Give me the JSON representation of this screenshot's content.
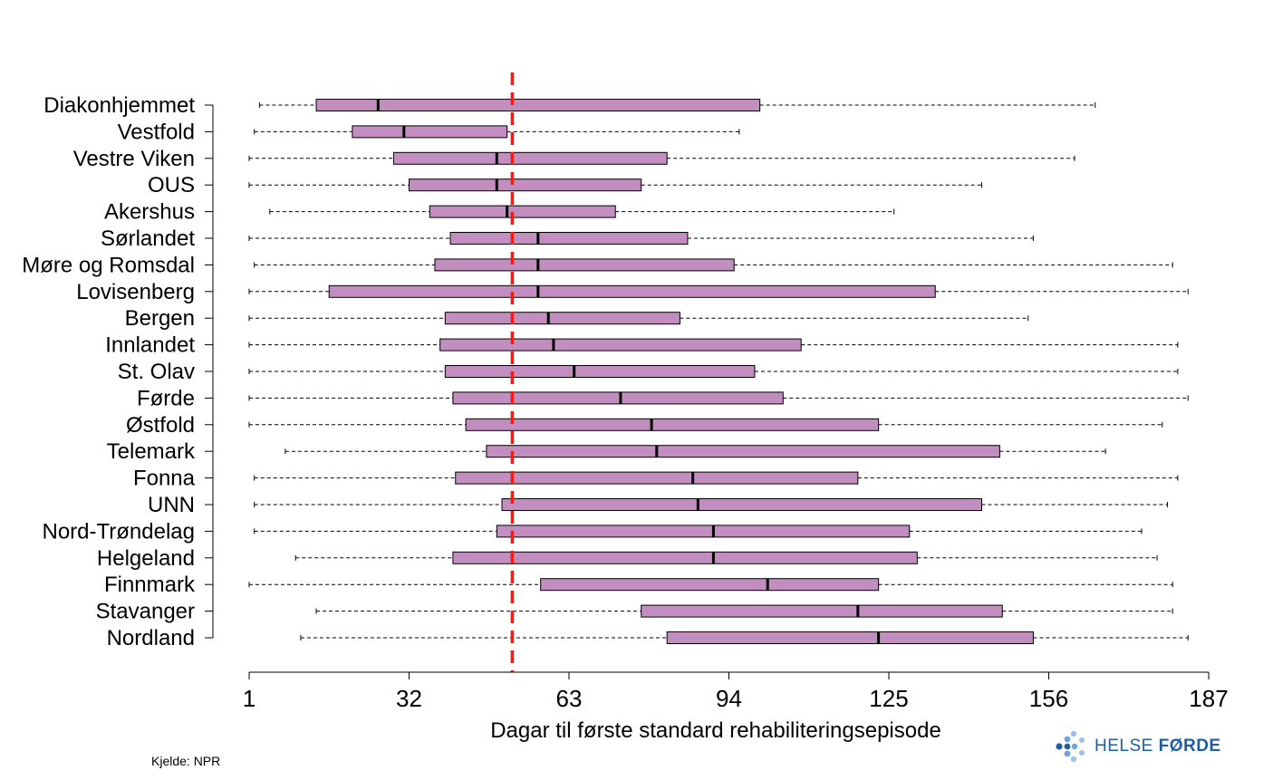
{
  "chart_data": {
    "type": "boxplot",
    "xlabel": "Dagar til første standard rehabiliteringsepisode",
    "xlim": [
      1,
      187
    ],
    "xticks": [
      "1",
      "32",
      "63",
      "94",
      "125",
      "156",
      "187"
    ],
    "reference_line": {
      "x": 52,
      "style": "dashed",
      "color": "#e8201c"
    },
    "box_color": "#c28ec0",
    "categories": [
      "Diakonhjemmet",
      "Vestfold",
      "Vestre Viken",
      "OUS",
      "Akershus",
      "Sørlandet",
      "Møre og Romsdal",
      "Lovisenberg",
      "Bergen",
      "Innlandet",
      "St. Olav",
      "Førde",
      "Østfold",
      "Telemark",
      "Fonna",
      "UNN",
      "Nord-Trøndelag",
      "Helgeland",
      "Finnmark",
      "Stavanger",
      "Nordland"
    ],
    "boxes": [
      {
        "min": 3,
        "q1": 14,
        "median": 26,
        "q3": 100,
        "max": 165
      },
      {
        "min": 2,
        "q1": 21,
        "median": 31,
        "q3": 51,
        "max": 96
      },
      {
        "min": 1,
        "q1": 29,
        "median": 49,
        "q3": 82,
        "max": 161
      },
      {
        "min": 1,
        "q1": 32,
        "median": 49,
        "q3": 77,
        "max": 143
      },
      {
        "min": 5,
        "q1": 36,
        "median": 51,
        "q3": 72,
        "max": 126
      },
      {
        "min": 1,
        "q1": 40,
        "median": 57,
        "q3": 86,
        "max": 153
      },
      {
        "min": 2,
        "q1": 37,
        "median": 57,
        "q3": 95,
        "max": 180
      },
      {
        "min": 1,
        "q1": 16.5,
        "median": 57,
        "q3": 134,
        "max": 183
      },
      {
        "min": 1,
        "q1": 39,
        "median": 59,
        "q3": 84.5,
        "max": 152
      },
      {
        "min": 1,
        "q1": 38,
        "median": 60,
        "q3": 108,
        "max": 181
      },
      {
        "min": 1,
        "q1": 39,
        "median": 64,
        "q3": 99,
        "max": 181
      },
      {
        "min": 1,
        "q1": 40.5,
        "median": 73,
        "q3": 104.5,
        "max": 183
      },
      {
        "min": 1,
        "q1": 43,
        "median": 79,
        "q3": 123,
        "max": 178
      },
      {
        "min": 8,
        "q1": 47,
        "median": 80,
        "q3": 146.5,
        "max": 167
      },
      {
        "min": 2,
        "q1": 41,
        "median": 87,
        "q3": 119,
        "max": 181
      },
      {
        "min": 2,
        "q1": 50,
        "median": 88,
        "q3": 143,
        "max": 179
      },
      {
        "min": 2,
        "q1": 49,
        "median": 91,
        "q3": 129,
        "max": 174
      },
      {
        "min": 10,
        "q1": 40.5,
        "median": 91,
        "q3": 130.5,
        "max": 177
      },
      {
        "min": 1,
        "q1": 57.5,
        "median": 101.5,
        "q3": 123,
        "max": 180
      },
      {
        "min": 14,
        "q1": 77,
        "median": 119,
        "q3": 147,
        "max": 180
      },
      {
        "min": 11,
        "q1": 82,
        "median": 123,
        "q3": 153,
        "max": 183
      }
    ]
  },
  "source": "Kjelde: NPR",
  "logo": {
    "text_regular": "HELSE ",
    "text_bold": "FØRDE",
    "color": "#1f5ea3"
  }
}
